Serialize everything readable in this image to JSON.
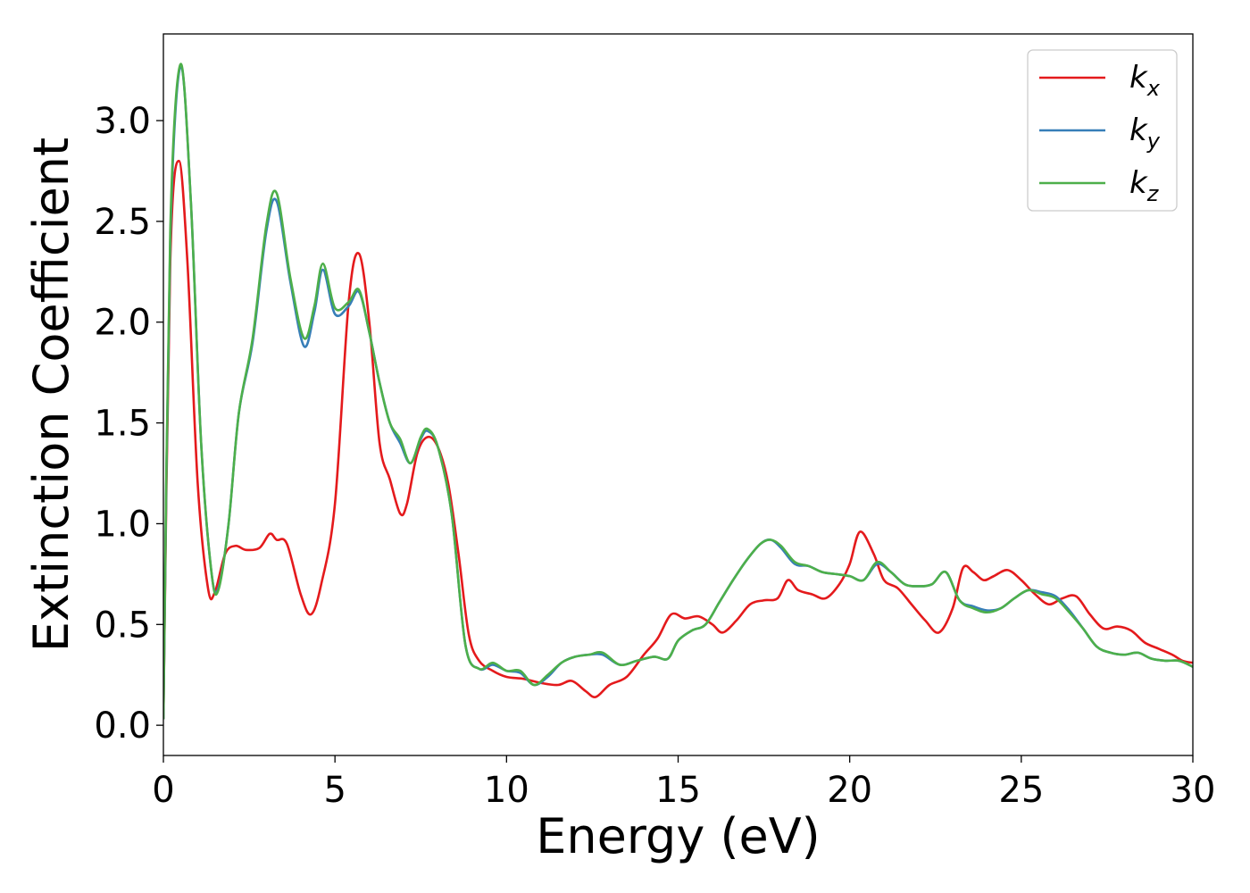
{
  "chart_data": {
    "type": "line",
    "title": "",
    "xlabel": "Energy (eV)",
    "ylabel": "Extinction Coefficient",
    "xlim": [
      0,
      30
    ],
    "ylim": [
      -0.15,
      3.43
    ],
    "xticks": [
      0,
      5,
      10,
      15,
      20,
      25,
      30
    ],
    "xtick_labels": [
      "0",
      "5",
      "10",
      "15",
      "20",
      "25",
      "30"
    ],
    "yticks": [
      0.0,
      0.5,
      1.0,
      1.5,
      2.0,
      2.5,
      3.0
    ],
    "ytick_labels": [
      "0.0",
      "0.5",
      "1.0",
      "1.5",
      "2.0",
      "2.5",
      "3.0"
    ],
    "grid": false,
    "legend_position": "top-right",
    "series": [
      {
        "name": "k_x",
        "legend_main": "k",
        "legend_sub": "x",
        "color": "#e41a1c",
        "x": [
          0,
          0.2,
          0.45,
          0.7,
          1.0,
          1.3,
          1.5,
          1.8,
          2.1,
          2.4,
          2.8,
          3.1,
          3.3,
          3.6,
          4.0,
          4.3,
          4.6,
          5.0,
          5.4,
          5.7,
          6.0,
          6.3,
          6.6,
          6.9,
          7.1,
          7.4,
          7.7,
          8.0,
          8.3,
          8.6,
          8.9,
          9.2,
          9.6,
          10.0,
          10.5,
          11.0,
          11.5,
          11.9,
          12.3,
          12.6,
          13.0,
          13.5,
          14.0,
          14.4,
          14.8,
          15.2,
          15.6,
          16.0,
          16.3,
          16.7,
          17.1,
          17.5,
          17.9,
          18.2,
          18.5,
          18.9,
          19.3,
          19.7,
          20.0,
          20.3,
          20.7,
          21.0,
          21.4,
          21.8,
          22.2,
          22.6,
          23.0,
          23.3,
          23.6,
          23.9,
          24.2,
          24.6,
          25.0,
          25.4,
          25.8,
          26.2,
          26.6,
          27.0,
          27.4,
          27.8,
          28.2,
          28.6,
          29.0,
          29.4,
          29.7,
          30.0
        ],
        "y": [
          0.03,
          2.3,
          2.8,
          2.3,
          1.2,
          0.68,
          0.66,
          0.85,
          0.89,
          0.87,
          0.88,
          0.95,
          0.92,
          0.9,
          0.65,
          0.55,
          0.7,
          1.1,
          2.1,
          2.34,
          2.0,
          1.4,
          1.22,
          1.05,
          1.1,
          1.35,
          1.43,
          1.38,
          1.2,
          0.85,
          0.45,
          0.32,
          0.27,
          0.24,
          0.23,
          0.21,
          0.2,
          0.22,
          0.17,
          0.14,
          0.2,
          0.24,
          0.35,
          0.43,
          0.55,
          0.53,
          0.54,
          0.5,
          0.46,
          0.52,
          0.6,
          0.62,
          0.63,
          0.72,
          0.67,
          0.65,
          0.63,
          0.7,
          0.8,
          0.96,
          0.85,
          0.72,
          0.68,
          0.6,
          0.52,
          0.46,
          0.58,
          0.78,
          0.76,
          0.72,
          0.74,
          0.77,
          0.72,
          0.65,
          0.6,
          0.63,
          0.64,
          0.55,
          0.48,
          0.49,
          0.47,
          0.41,
          0.38,
          0.35,
          0.32,
          0.31
        ]
      },
      {
        "name": "k_y",
        "legend_main": "k",
        "legend_sub": "y",
        "color": "#377eb8",
        "x": [
          0,
          0.2,
          0.5,
          0.8,
          1.1,
          1.4,
          1.6,
          1.9,
          2.2,
          2.6,
          3.0,
          3.3,
          3.7,
          4.1,
          4.4,
          4.65,
          5.0,
          5.4,
          5.7,
          6.0,
          6.3,
          6.6,
          6.9,
          7.2,
          7.5,
          7.7,
          8.0,
          8.4,
          8.8,
          9.2,
          9.6,
          10.0,
          10.4,
          10.8,
          11.2,
          11.6,
          12.0,
          12.4,
          12.8,
          13.3,
          13.8,
          14.3,
          14.7,
          15.0,
          15.4,
          15.8,
          16.2,
          16.6,
          17.0,
          17.4,
          17.7,
          18.0,
          18.4,
          18.8,
          19.2,
          19.6,
          20.0,
          20.4,
          20.8,
          21.2,
          21.6,
          22.0,
          22.4,
          22.8,
          23.2,
          23.6,
          24.0,
          24.4,
          24.8,
          25.2,
          25.6,
          26.0,
          26.4,
          26.8,
          27.2,
          27.6,
          28.0,
          28.4,
          28.8,
          29.2,
          29.6,
          30.0
        ],
        "y": [
          0.03,
          2.4,
          3.27,
          2.6,
          1.4,
          0.76,
          0.68,
          1.0,
          1.55,
          1.9,
          2.45,
          2.6,
          2.2,
          1.88,
          2.05,
          2.26,
          2.04,
          2.08,
          2.15,
          1.95,
          1.7,
          1.5,
          1.4,
          1.3,
          1.42,
          1.46,
          1.38,
          1.05,
          0.4,
          0.28,
          0.3,
          0.27,
          0.26,
          0.2,
          0.24,
          0.31,
          0.34,
          0.35,
          0.35,
          0.3,
          0.32,
          0.34,
          0.33,
          0.42,
          0.47,
          0.5,
          0.61,
          0.72,
          0.82,
          0.9,
          0.92,
          0.88,
          0.8,
          0.79,
          0.76,
          0.75,
          0.74,
          0.72,
          0.8,
          0.76,
          0.7,
          0.69,
          0.7,
          0.76,
          0.62,
          0.59,
          0.57,
          0.58,
          0.63,
          0.67,
          0.66,
          0.64,
          0.57,
          0.48,
          0.39,
          0.36,
          0.35,
          0.36,
          0.33,
          0.32,
          0.32,
          0.29
        ]
      },
      {
        "name": "k_z",
        "legend_main": "k",
        "legend_sub": "z",
        "color": "#4daf4a",
        "x": [
          0,
          0.2,
          0.5,
          0.8,
          1.1,
          1.4,
          1.6,
          1.9,
          2.2,
          2.6,
          3.0,
          3.3,
          3.7,
          4.1,
          4.4,
          4.65,
          5.0,
          5.4,
          5.7,
          6.0,
          6.3,
          6.6,
          6.9,
          7.2,
          7.5,
          7.7,
          8.0,
          8.4,
          8.8,
          9.2,
          9.6,
          10.0,
          10.4,
          10.8,
          11.2,
          11.6,
          12.0,
          12.4,
          12.8,
          13.3,
          13.8,
          14.3,
          14.7,
          15.0,
          15.4,
          15.8,
          16.2,
          16.6,
          17.0,
          17.4,
          17.7,
          18.0,
          18.4,
          18.8,
          19.2,
          19.6,
          20.0,
          20.4,
          20.8,
          21.2,
          21.6,
          22.0,
          22.4,
          22.8,
          23.2,
          23.6,
          24.0,
          24.4,
          24.8,
          25.2,
          25.6,
          26.0,
          26.4,
          26.8,
          27.2,
          27.6,
          28.0,
          28.4,
          28.8,
          29.2,
          29.6,
          30.0
        ],
        "y": [
          0.03,
          2.45,
          3.28,
          2.6,
          1.4,
          0.76,
          0.67,
          1.0,
          1.55,
          1.92,
          2.48,
          2.64,
          2.22,
          1.92,
          2.08,
          2.29,
          2.07,
          2.1,
          2.16,
          1.95,
          1.7,
          1.5,
          1.42,
          1.3,
          1.43,
          1.47,
          1.38,
          1.05,
          0.4,
          0.28,
          0.31,
          0.27,
          0.27,
          0.2,
          0.25,
          0.31,
          0.34,
          0.35,
          0.36,
          0.3,
          0.32,
          0.34,
          0.33,
          0.42,
          0.47,
          0.5,
          0.61,
          0.72,
          0.82,
          0.9,
          0.92,
          0.89,
          0.81,
          0.79,
          0.76,
          0.75,
          0.74,
          0.72,
          0.81,
          0.76,
          0.7,
          0.69,
          0.7,
          0.76,
          0.62,
          0.58,
          0.56,
          0.58,
          0.63,
          0.67,
          0.65,
          0.63,
          0.56,
          0.48,
          0.39,
          0.36,
          0.35,
          0.36,
          0.33,
          0.32,
          0.32,
          0.29
        ]
      }
    ]
  }
}
